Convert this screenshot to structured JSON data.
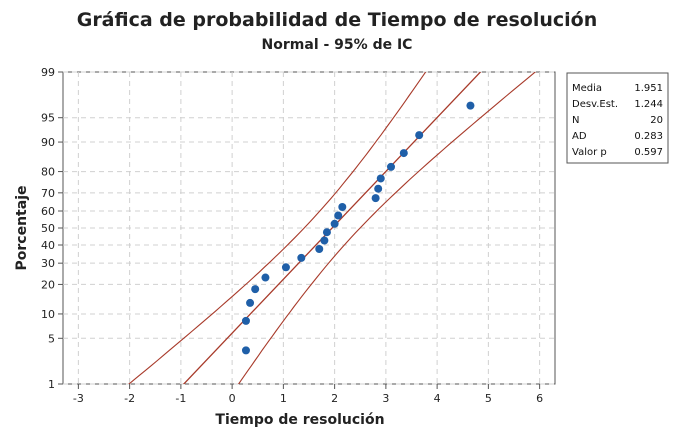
{
  "chart_data": {
    "type": "scatter",
    "title": "Gráfica de probabilidad de Tiempo de resolución",
    "subtitle": "Normal - 95% de IC",
    "xlabel": "Tiempo de resolución",
    "ylabel": "Porcentaje",
    "xlim": [
      -3.3,
      6.3
    ],
    "x_ticks": [
      -3,
      -2,
      -1,
      0,
      1,
      2,
      3,
      4,
      5,
      6
    ],
    "y_ticks": [
      1,
      5,
      10,
      20,
      30,
      40,
      50,
      60,
      70,
      80,
      90,
      95,
      99
    ],
    "y_scale": "normal-probability",
    "ylim": [
      1,
      99
    ],
    "grid": true,
    "fit_mean": 1.951,
    "fit_sd": 1.244,
    "colors": {
      "points": "#1f5fa8",
      "fit_line": "#a83a2a",
      "grid": "#d0d0d0"
    },
    "points": [
      {
        "x": 0.27,
        "y": 3.4
      },
      {
        "x": 0.27,
        "y": 8.3
      },
      {
        "x": 0.35,
        "y": 13.2
      },
      {
        "x": 0.45,
        "y": 18.1
      },
      {
        "x": 0.65,
        "y": 23.0
      },
      {
        "x": 1.05,
        "y": 27.9
      },
      {
        "x": 1.35,
        "y": 32.8
      },
      {
        "x": 1.7,
        "y": 37.7
      },
      {
        "x": 1.8,
        "y": 42.6
      },
      {
        "x": 1.85,
        "y": 47.5
      },
      {
        "x": 2.0,
        "y": 52.5
      },
      {
        "x": 2.07,
        "y": 57.4
      },
      {
        "x": 2.15,
        "y": 62.3
      },
      {
        "x": 2.8,
        "y": 67.2
      },
      {
        "x": 2.85,
        "y": 72.1
      },
      {
        "x": 2.9,
        "y": 77.0
      },
      {
        "x": 3.1,
        "y": 81.9
      },
      {
        "x": 3.35,
        "y": 86.8
      },
      {
        "x": 3.65,
        "y": 91.7
      },
      {
        "x": 4.65,
        "y": 96.6
      }
    ]
  },
  "stats": [
    {
      "label": "Media",
      "value": "1.951"
    },
    {
      "label": "Desv.Est.",
      "value": "1.244"
    },
    {
      "label": "N",
      "value": "20"
    },
    {
      "label": "AD",
      "value": "0.283"
    },
    {
      "label": "Valor p",
      "value": "0.597"
    }
  ]
}
